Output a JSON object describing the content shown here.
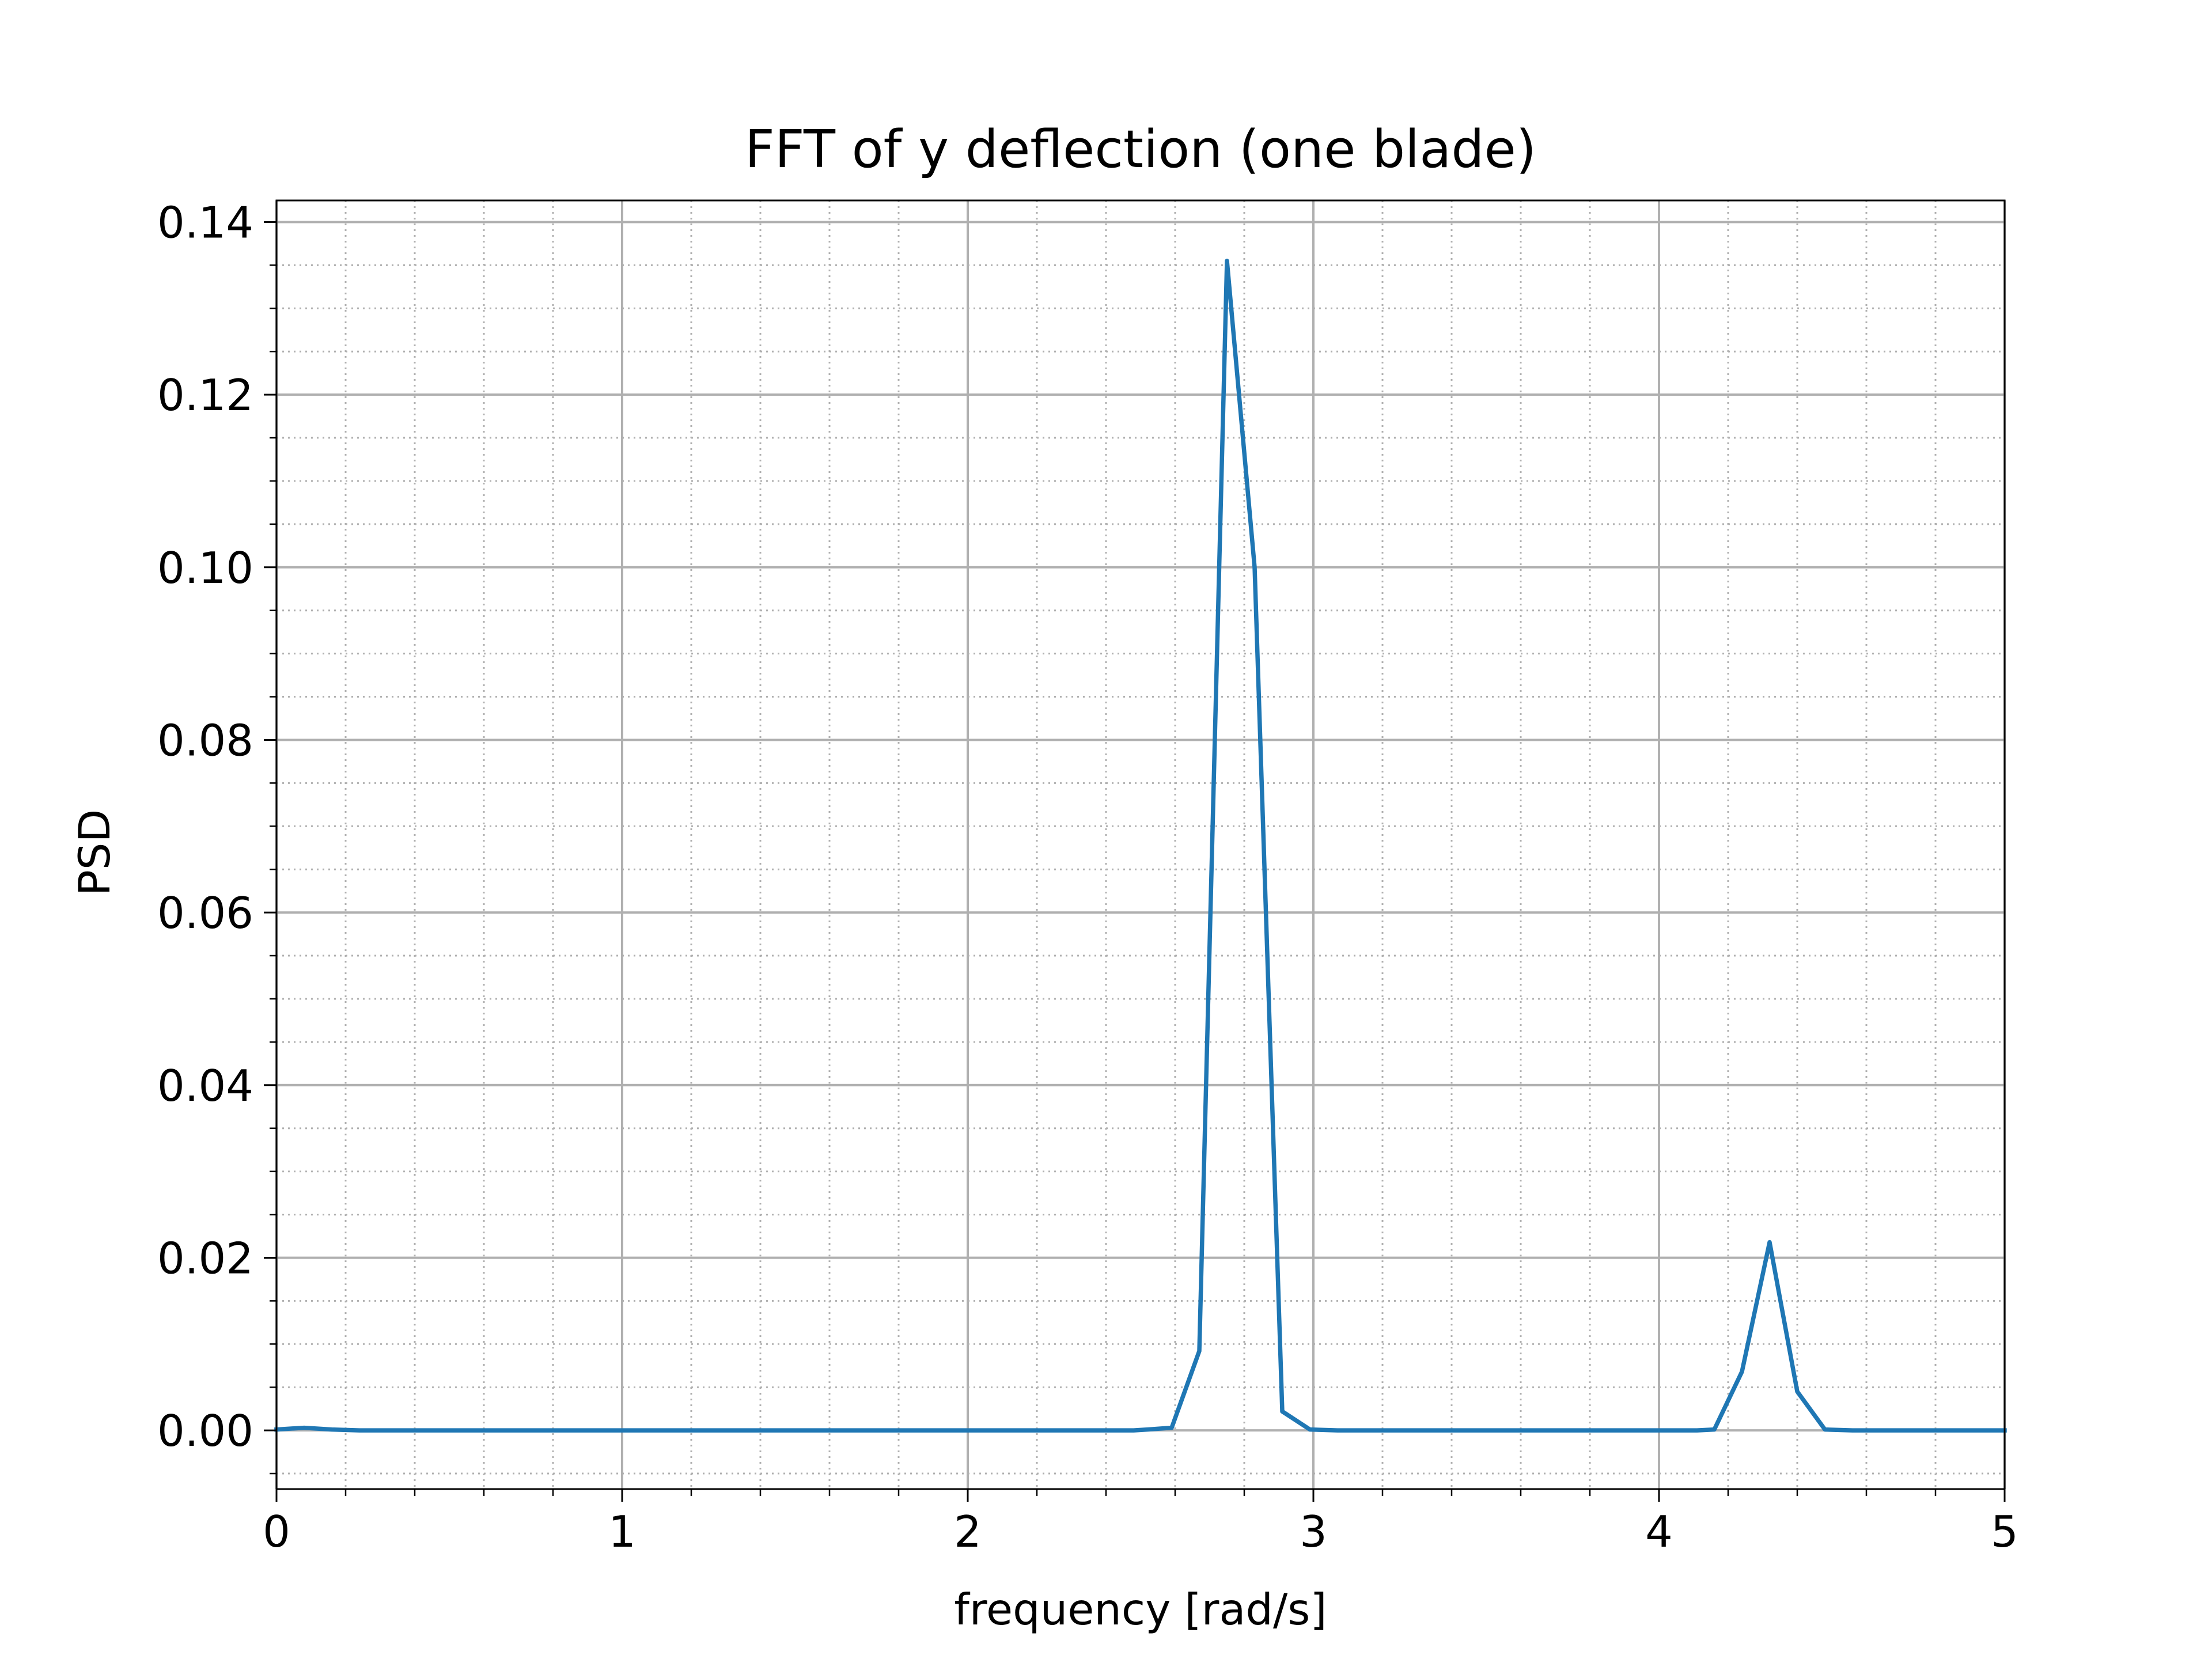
{
  "chart_data": {
    "type": "line",
    "title": "FFT of y deflection (one blade)",
    "xlabel": "frequency [rad/s]",
    "ylabel": "PSD",
    "xlim": [
      0,
      5
    ],
    "ylim": [
      -0.0068,
      0.1425
    ],
    "x_ticks": [
      0,
      1,
      2,
      3,
      4,
      5
    ],
    "x_tick_labels": [
      "0",
      "1",
      "2",
      "3",
      "4",
      "5"
    ],
    "y_ticks": [
      0.0,
      0.02,
      0.04,
      0.06,
      0.08,
      0.1,
      0.12,
      0.14
    ],
    "y_tick_labels": [
      "0.00",
      "0.02",
      "0.04",
      "0.06",
      "0.08",
      "0.10",
      "0.12",
      "0.14"
    ],
    "x_minor_step": 0.2,
    "y_minor_step": 0.005,
    "grid": {
      "major": true,
      "minor": true,
      "minor_style": "dotted"
    },
    "series": [
      {
        "color": "#1f77b4",
        "x": [
          0,
          0.08,
          0.16,
          0.24,
          0.32,
          0.4,
          0.48,
          0.56,
          0.64,
          0.72,
          0.8,
          0.88,
          0.96,
          1.04,
          1.12,
          1.2,
          1.28,
          1.36,
          1.44,
          1.52,
          1.6,
          1.68,
          1.76,
          1.84,
          1.92,
          2.0,
          2.08,
          2.16,
          2.24,
          2.32,
          2.4,
          2.48,
          2.52,
          2.59,
          2.67,
          2.75,
          2.83,
          2.91,
          2.99,
          3.07,
          3.15,
          3.23,
          3.31,
          3.39,
          3.47,
          3.55,
          3.63,
          3.71,
          3.79,
          3.87,
          3.95,
          4.03,
          4.11,
          4.16,
          4.24,
          4.32,
          4.4,
          4.48,
          4.56,
          4.64,
          4.72,
          4.8,
          4.88,
          4.96,
          5.0
        ],
        "y": [
          0.0001,
          0.0003,
          0.0001,
          0,
          0,
          0,
          0,
          0,
          0,
          0,
          0,
          0,
          0,
          0,
          0,
          0,
          0,
          0,
          0,
          0,
          0,
          0,
          0,
          0,
          0,
          0,
          0,
          0,
          0,
          0,
          0,
          0,
          0.0001,
          0.0003,
          0.0092,
          0.1355,
          0.1,
          0.0022,
          0.0001,
          0,
          0,
          0,
          0,
          0,
          0,
          0,
          0,
          0,
          0,
          0,
          0,
          0,
          0,
          0.0001,
          0.0068,
          0.0218,
          0.0045,
          0.0001,
          0,
          0,
          0,
          0,
          0,
          0,
          0
        ]
      }
    ]
  }
}
